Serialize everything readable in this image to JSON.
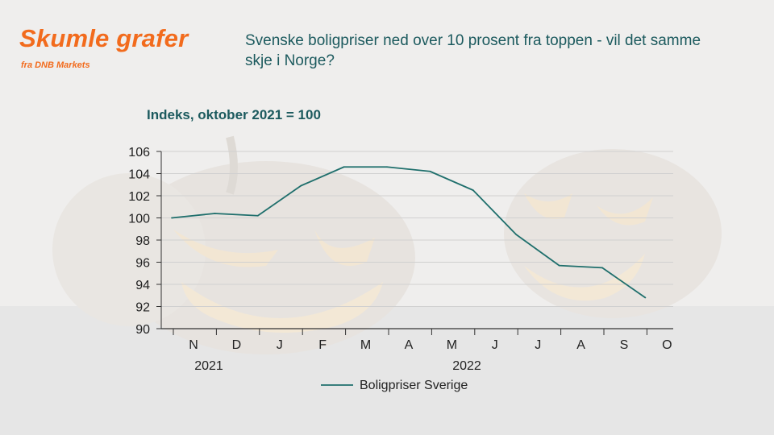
{
  "brand": {
    "title": "Skumle grafer",
    "subtitle": "fra DNB Markets"
  },
  "headline": "Svenske boligpriser  ned over 10 prosent  fra toppen  - vil det samme skje i Norge?",
  "colors": {
    "brand": "#f26b1d",
    "text": "#1c5a5e",
    "series": "#1f6f6c"
  },
  "chart_data": {
    "type": "line",
    "title": "Indeks, oktober 2021 = 100",
    "categories": [
      "N",
      "D",
      "J",
      "F",
      "M",
      "A",
      "M",
      "J",
      "J",
      "A",
      "S",
      "O"
    ],
    "year_labels": [
      "2021",
      "2022"
    ],
    "x": [
      "2021-10",
      "2021-11",
      "2021-12",
      "2022-01",
      "2022-02",
      "2022-03",
      "2022-04",
      "2022-05",
      "2022-06",
      "2022-07",
      "2022-08",
      "2022-09"
    ],
    "series": [
      {
        "name": "Boligpriser Sverige",
        "values": [
          100.0,
          100.4,
          100.2,
          102.9,
          104.6,
          104.6,
          104.2,
          102.5,
          98.5,
          95.7,
          95.5,
          92.8
        ]
      }
    ],
    "ylim": [
      90,
      106
    ],
    "yticks": [
      "90",
      "92",
      "94",
      "96",
      "98",
      "100",
      "102",
      "104",
      "106"
    ],
    "grid": true,
    "legend": "bottom"
  }
}
